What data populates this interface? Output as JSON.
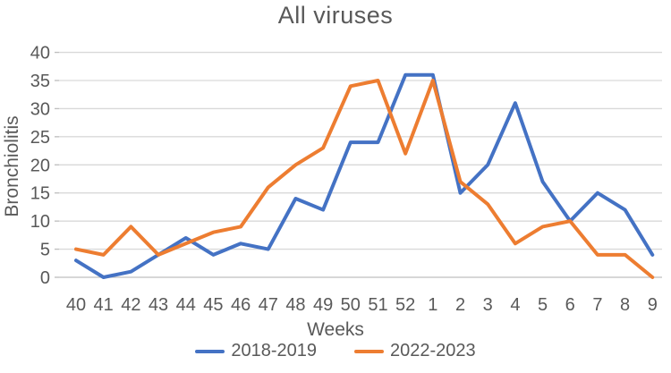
{
  "chart_data": {
    "type": "line",
    "title": "All viruses",
    "xlabel": "Weeks",
    "ylabel": "Bronchiolitis",
    "categories": [
      "40",
      "41",
      "42",
      "43",
      "44",
      "45",
      "46",
      "47",
      "48",
      "49",
      "50",
      "51",
      "52",
      "1",
      "2",
      "3",
      "4",
      "5",
      "6",
      "7",
      "8",
      "9"
    ],
    "series": [
      {
        "name": "2018-2019",
        "color": "#4472C4",
        "values": [
          3,
          0,
          1,
          4,
          7,
          4,
          6,
          5,
          14,
          12,
          24,
          24,
          36,
          36,
          15,
          20,
          31,
          17,
          10,
          15,
          12,
          4
        ]
      },
      {
        "name": "2022-2023",
        "color": "#ED7D31",
        "values": [
          5,
          4,
          9,
          4,
          6,
          8,
          9,
          16,
          20,
          23,
          34,
          35,
          22,
          35,
          17,
          13,
          6,
          9,
          10,
          4,
          4,
          0
        ]
      }
    ],
    "ylim": [
      0,
      40
    ],
    "ytick_step": 5,
    "yticks": [
      0,
      5,
      10,
      15,
      20,
      25,
      30,
      35,
      40
    ],
    "grid": true,
    "legend_position": "bottom"
  },
  "colors": {
    "gridline": "#D9D9D9",
    "axis_line": "#BFBFBF",
    "axis_text": "#595959"
  }
}
